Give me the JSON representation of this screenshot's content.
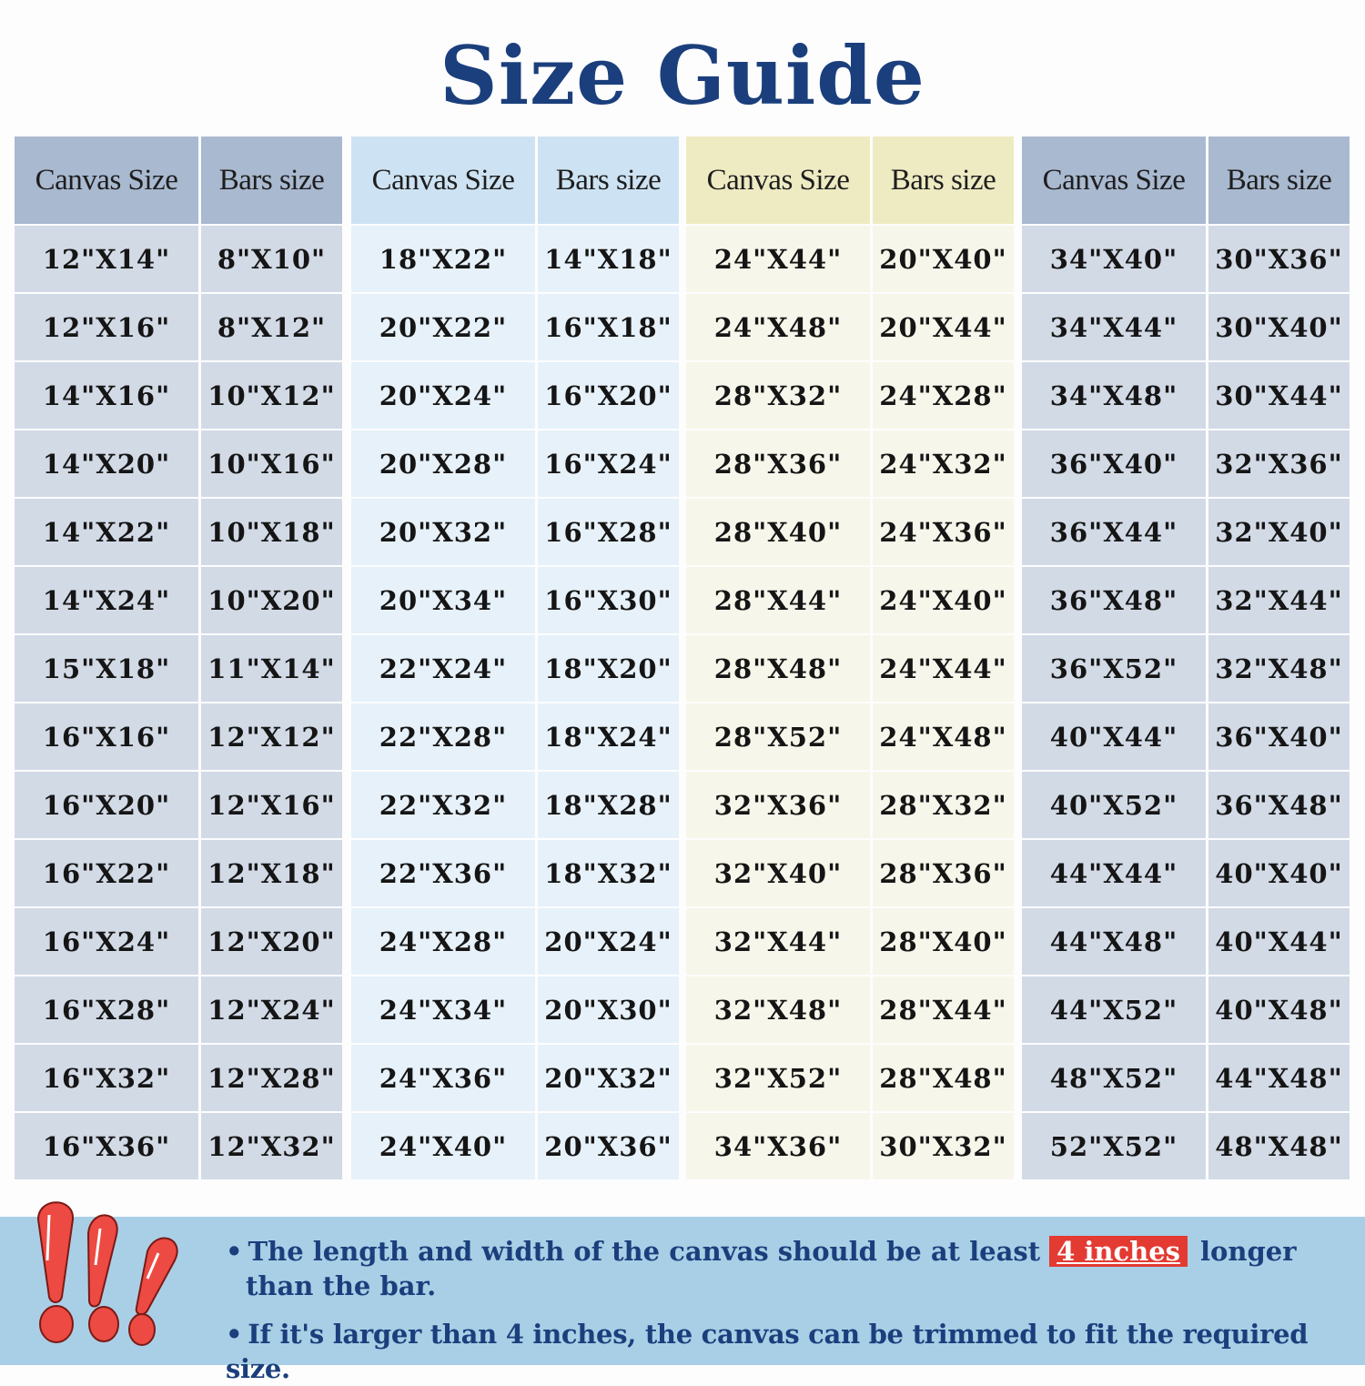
{
  "title": "Size Guide",
  "colors": {
    "title": "#1b3f7c",
    "table_gray_header": "#a9b9d0",
    "table_gray_body": "#d2dae6",
    "table_blue_header": "#cde3f3",
    "table_blue_body": "#e7f1f9",
    "table_yellow_header": "#eeebc3",
    "table_yellow_body": "#f7f6ea",
    "notice_background": "#a9cfe6",
    "highlight": "#e33a32"
  },
  "tables": [
    {
      "headers": [
        "Canvas Size",
        "Bars size"
      ],
      "rows": [
        [
          "12\"X14\"",
          "8\"X10\""
        ],
        [
          "12\"X16\"",
          "8\"X12\""
        ],
        [
          "14\"X16\"",
          "10\"X12\""
        ],
        [
          "14\"X20\"",
          "10\"X16\""
        ],
        [
          "14\"X22\"",
          "10\"X18\""
        ],
        [
          "14\"X24\"",
          "10\"X20\""
        ],
        [
          "15\"X18\"",
          "11\"X14\""
        ],
        [
          "16\"X16\"",
          "12\"X12\""
        ],
        [
          "16\"X20\"",
          "12\"X16\""
        ],
        [
          "16\"X22\"",
          "12\"X18\""
        ],
        [
          "16\"X24\"",
          "12\"X20\""
        ],
        [
          "16\"X28\"",
          "12\"X24\""
        ],
        [
          "16\"X32\"",
          "12\"X28\""
        ],
        [
          "16\"X36\"",
          "12\"X32\""
        ]
      ]
    },
    {
      "headers": [
        "Canvas Size",
        "Bars size"
      ],
      "rows": [
        [
          "18\"X22\"",
          "14\"X18\""
        ],
        [
          "20\"X22\"",
          "16\"X18\""
        ],
        [
          "20\"X24\"",
          "16\"X20\""
        ],
        [
          "20\"X28\"",
          "16\"X24\""
        ],
        [
          "20\"X32\"",
          "16\"X28\""
        ],
        [
          "20\"X34\"",
          "16\"X30\""
        ],
        [
          "22\"X24\"",
          "18\"X20\""
        ],
        [
          "22\"X28\"",
          "18\"X24\""
        ],
        [
          "22\"X32\"",
          "18\"X28\""
        ],
        [
          "22\"X36\"",
          "18\"X32\""
        ],
        [
          "24\"X28\"",
          "20\"X24\""
        ],
        [
          "24\"X34\"",
          "20\"X30\""
        ],
        [
          "24\"X36\"",
          "20\"X32\""
        ],
        [
          "24\"X40\"",
          "20\"X36\""
        ]
      ]
    },
    {
      "headers": [
        "Canvas Size",
        "Bars size"
      ],
      "rows": [
        [
          "24\"X44\"",
          "20\"X40\""
        ],
        [
          "24\"X48\"",
          "20\"X44\""
        ],
        [
          "28\"X32\"",
          "24\"X28\""
        ],
        [
          "28\"X36\"",
          "24\"X32\""
        ],
        [
          "28\"X40\"",
          "24\"X36\""
        ],
        [
          "28\"X44\"",
          "24\"X40\""
        ],
        [
          "28\"X48\"",
          "24\"X44\""
        ],
        [
          "28\"X52\"",
          "24\"X48\""
        ],
        [
          "32\"X36\"",
          "28\"X32\""
        ],
        [
          "32\"X40\"",
          "28\"X36\""
        ],
        [
          "32\"X44\"",
          "28\"X40\""
        ],
        [
          "32\"X48\"",
          "28\"X44\""
        ],
        [
          "32\"X52\"",
          "28\"X48\""
        ],
        [
          "34\"X36\"",
          "30\"X32\""
        ]
      ]
    },
    {
      "headers": [
        "Canvas Size",
        "Bars size"
      ],
      "rows": [
        [
          "34\"X40\"",
          "30\"X36\""
        ],
        [
          "34\"X44\"",
          "30\"X40\""
        ],
        [
          "34\"X48\"",
          "30\"X44\""
        ],
        [
          "36\"X40\"",
          "32\"X36\""
        ],
        [
          "36\"X44\"",
          "32\"X40\""
        ],
        [
          "36\"X48\"",
          "32\"X44\""
        ],
        [
          "36\"X52\"",
          "32\"X48\""
        ],
        [
          "40\"X44\"",
          "36\"X40\""
        ],
        [
          "40\"X52\"",
          "36\"X48\""
        ],
        [
          "44\"X44\"",
          "40\"X40\""
        ],
        [
          "44\"X48\"",
          "40\"X44\""
        ],
        [
          "44\"X52\"",
          "40\"X48\""
        ],
        [
          "48\"X52\"",
          "44\"X48\""
        ],
        [
          "52\"X52\"",
          "48\"X48\""
        ]
      ]
    }
  ],
  "notice": {
    "icon": "exclamation-marks-icon",
    "bullet": "•",
    "line1_before": "The length and width of the canvas should be at least",
    "line1_highlight": "4 inches",
    "line1_after": "longer",
    "line1_cont": "than the bar.",
    "line2": "If it's larger than 4 inches, the canvas can be trimmed to fit the required size."
  }
}
